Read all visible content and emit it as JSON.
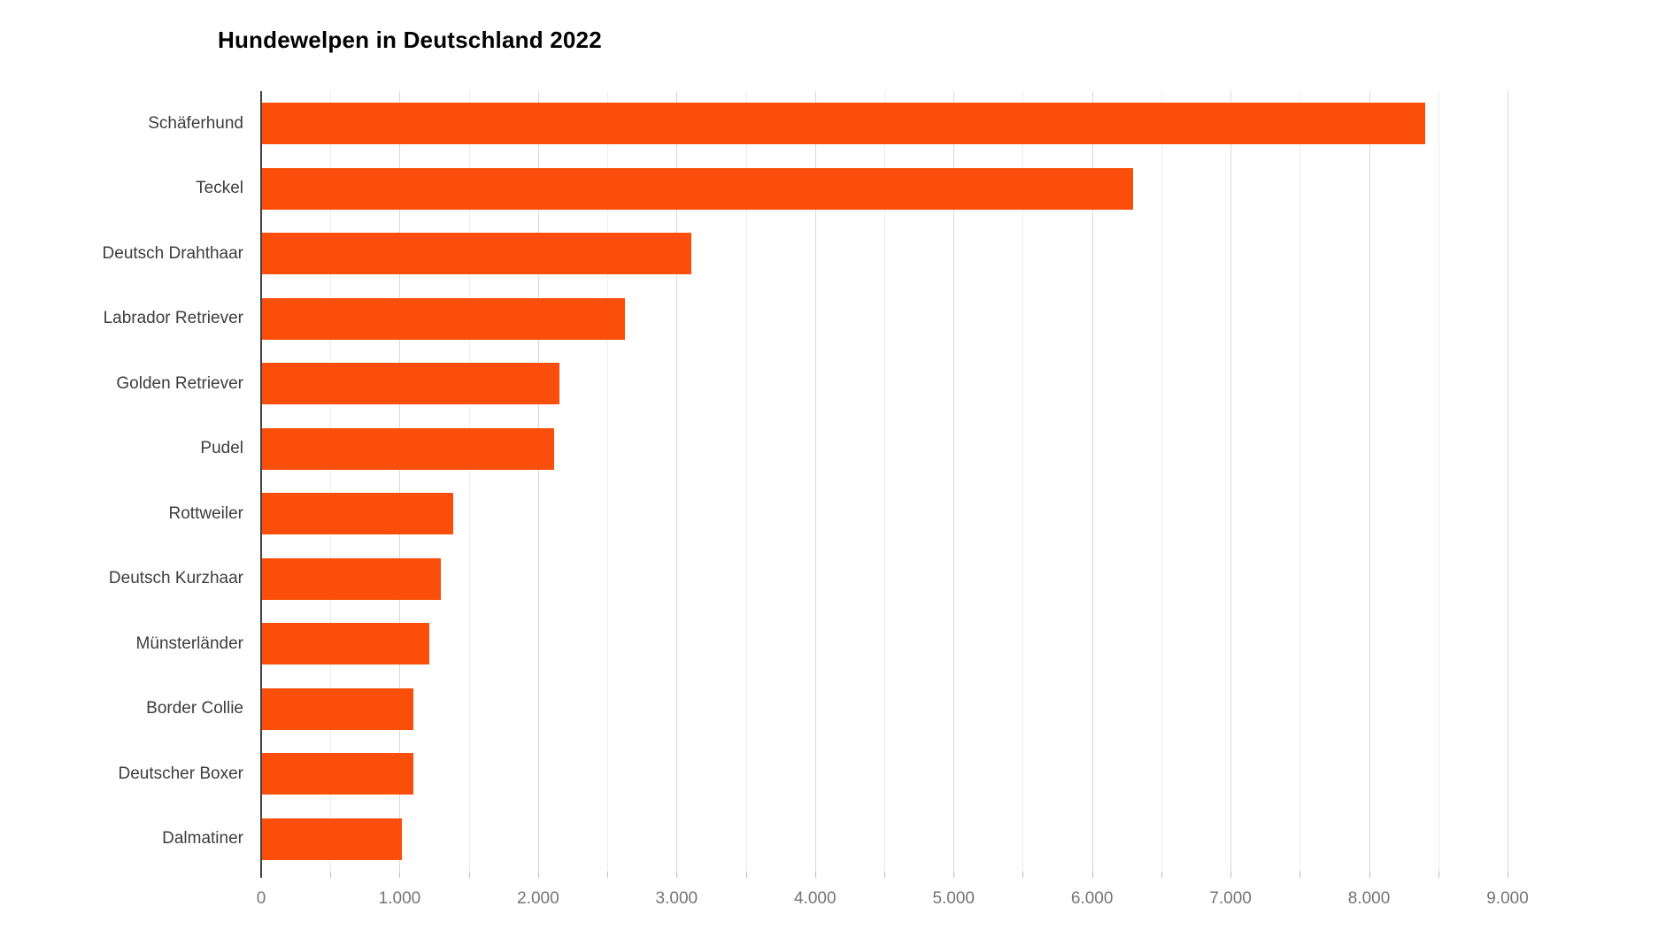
{
  "chart_data": {
    "type": "bar",
    "orientation": "horizontal",
    "title": "Hundewelpen in Deutschland 2022",
    "categories": [
      "Schäferhund",
      "Teckel",
      "Deutsch Drahthaar",
      "Labrador Retriever",
      "Golden Retriever",
      "Pudel",
      "Rottweiler",
      "Deutsch Kurzhaar",
      "Münsterländer",
      "Border Collie",
      "Deutscher Boxer",
      "Dalmatiner"
    ],
    "values": [
      8400,
      6290,
      3100,
      2620,
      2150,
      2110,
      1380,
      1290,
      1210,
      1090,
      1090,
      1010
    ],
    "xlabel": "",
    "ylabel": "",
    "xlim": [
      0,
      9000
    ],
    "x_tick_step": 1000,
    "x_minor_gridline_step": 500,
    "x_tick_labels": [
      "0",
      "1.000",
      "2.000",
      "3.000",
      "4.000",
      "5.000",
      "6.000",
      "7.000",
      "8.000",
      "9.000"
    ],
    "grid": true,
    "legend": false,
    "bar_color": "#fb4e0a"
  },
  "style": {
    "background": "#ffffff",
    "title_color": "#000000",
    "category_label_color": "#3d3d3d",
    "tick_label_color": "#757575",
    "axis_line_color": "#424242",
    "grid_major_color": "#d9d9d9",
    "grid_minor_color": "#ededed",
    "tick_mark_color": "#bdbdbd"
  }
}
